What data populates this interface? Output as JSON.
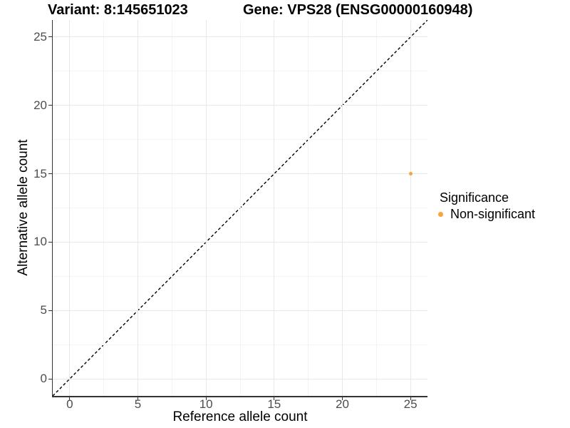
{
  "chart_data": {
    "type": "scatter",
    "title_left": "Variant: 8:145651023",
    "title_right": "Gene: VPS28 (ENSG00000160948)",
    "xlabel": "Reference allele count",
    "ylabel": "Alternative allele count",
    "xlim": [
      -1.25,
      26.25
    ],
    "ylim": [
      -1.25,
      26.25
    ],
    "x_ticks": [
      0,
      5,
      10,
      15,
      20,
      25
    ],
    "y_ticks": [
      0,
      5,
      10,
      15,
      20,
      25
    ],
    "x_minor_ticks": [
      2.5,
      7.5,
      12.5,
      17.5,
      22.5
    ],
    "y_minor_ticks": [
      2.5,
      7.5,
      12.5,
      17.5,
      22.5
    ],
    "grid": "major+minor",
    "identity_line": {
      "style": "dashed",
      "color": "#000000",
      "from": [
        -1.25,
        -1.25
      ],
      "to": [
        26.25,
        26.25
      ]
    },
    "series": [
      {
        "name": "Non-significant",
        "color": "#F8A33D",
        "point_size": 5,
        "points": [
          {
            "x": 25,
            "y": 15
          }
        ]
      }
    ],
    "legend": {
      "title": "Significance",
      "position": "right",
      "items": [
        {
          "label": "Non-significant",
          "color": "#F8A33D"
        }
      ]
    },
    "colors": {
      "grid_major": "#E8E8E8",
      "grid_minor": "#F3F3F3",
      "axis_line": "#333333",
      "tick_label": "#4D4D4D",
      "title": "#000000"
    }
  }
}
